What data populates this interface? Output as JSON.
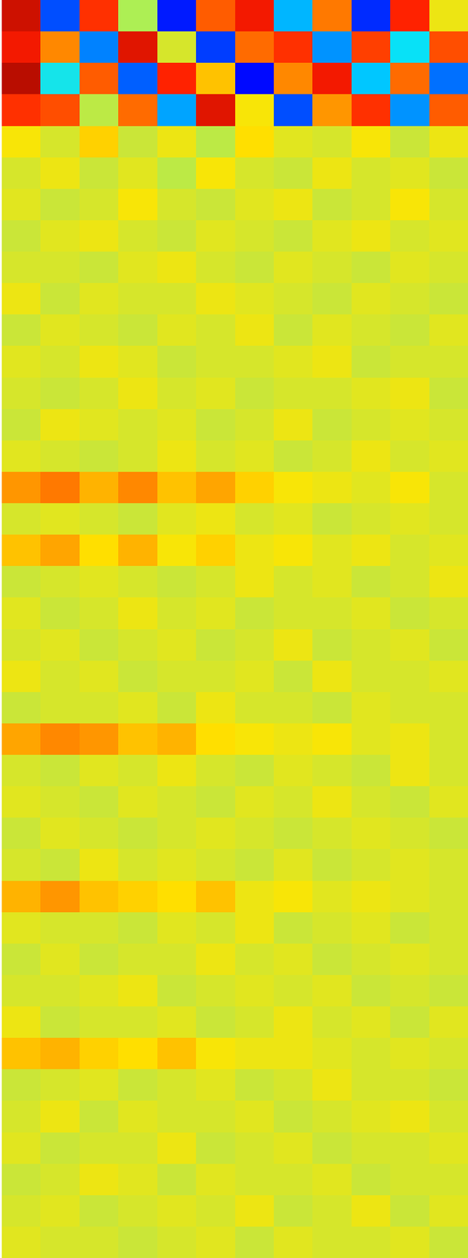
{
  "chart_data": {
    "type": "heatmap",
    "tick_labels": false,
    "zlim": [
      -3,
      3
    ],
    "z": [
      [
        2.6,
        -1.8,
        2.2,
        0.3,
        -2.1,
        1.9,
        2.4,
        -1.2,
        1.7,
        -2.0,
        2.3,
        0.8
      ],
      [
        2.4,
        1.6,
        -1.5,
        2.5,
        0.6,
        -1.9,
        1.8,
        2.2,
        -1.4,
        2.1,
        -0.9,
        2.0
      ],
      [
        2.7,
        -0.8,
        1.9,
        -1.7,
        2.3,
        1.2,
        -2.2,
        1.6,
        2.4,
        -1.1,
        1.8,
        -1.6
      ],
      [
        2.2,
        2.0,
        0.4,
        1.8,
        -1.3,
        2.5,
        0.9,
        -1.8,
        1.5,
        2.2,
        -1.4,
        1.9
      ],
      [
        0.9,
        0.6,
        1.1,
        0.5,
        0.8,
        0.4,
        1.0,
        0.7,
        0.6,
        0.9,
        0.5,
        0.8
      ],
      [
        0.6,
        0.8,
        0.5,
        0.7,
        0.4,
        0.9,
        0.6,
        0.5,
        0.8,
        0.6,
        0.7,
        0.5
      ],
      [
        0.7,
        0.5,
        0.6,
        0.9,
        0.6,
        0.5,
        0.7,
        0.8,
        0.5,
        0.6,
        0.9,
        0.6
      ],
      [
        0.5,
        0.7,
        0.8,
        0.6,
        0.5,
        0.7,
        0.6,
        0.5,
        0.7,
        0.8,
        0.6,
        0.7
      ],
      [
        0.6,
        0.6,
        0.5,
        0.7,
        0.8,
        0.6,
        0.5,
        0.7,
        0.6,
        0.5,
        0.7,
        0.6
      ],
      [
        0.8,
        0.5,
        0.7,
        0.6,
        0.6,
        0.8,
        0.7,
        0.6,
        0.5,
        0.7,
        0.6,
        0.5
      ],
      [
        0.5,
        0.7,
        0.6,
        0.5,
        0.7,
        0.6,
        0.8,
        0.5,
        0.7,
        0.6,
        0.5,
        0.7
      ],
      [
        0.7,
        0.6,
        0.8,
        0.7,
        0.5,
        0.6,
        0.6,
        0.7,
        0.8,
        0.5,
        0.6,
        0.6
      ],
      [
        0.6,
        0.5,
        0.6,
        0.8,
        0.6,
        0.7,
        0.5,
        0.6,
        0.6,
        0.7,
        0.8,
        0.5
      ],
      [
        0.5,
        0.8,
        0.7,
        0.6,
        0.7,
        0.5,
        0.6,
        0.8,
        0.5,
        0.6,
        0.7,
        0.6
      ],
      [
        0.7,
        0.6,
        0.5,
        0.6,
        0.8,
        0.6,
        0.7,
        0.5,
        0.6,
        0.8,
        0.6,
        0.7
      ],
      [
        1.5,
        1.7,
        1.3,
        1.6,
        1.2,
        1.4,
        1.1,
        0.9,
        0.8,
        0.7,
        0.9,
        0.6
      ],
      [
        0.6,
        0.7,
        0.6,
        0.5,
        0.7,
        0.8,
        0.6,
        0.7,
        0.5,
        0.6,
        0.7,
        0.6
      ],
      [
        1.2,
        1.4,
        1.0,
        1.3,
        0.9,
        1.1,
        0.8,
        0.9,
        0.7,
        0.8,
        0.6,
        0.7
      ],
      [
        0.5,
        0.6,
        0.7,
        0.6,
        0.5,
        0.6,
        0.8,
        0.6,
        0.7,
        0.5,
        0.6,
        0.8
      ],
      [
        0.7,
        0.5,
        0.6,
        0.8,
        0.6,
        0.7,
        0.5,
        0.6,
        0.6,
        0.7,
        0.5,
        0.6
      ],
      [
        0.6,
        0.7,
        0.5,
        0.6,
        0.7,
        0.5,
        0.6,
        0.8,
        0.5,
        0.6,
        0.7,
        0.5
      ],
      [
        0.8,
        0.6,
        0.7,
        0.5,
        0.6,
        0.6,
        0.7,
        0.5,
        0.8,
        0.6,
        0.6,
        0.7
      ],
      [
        0.5,
        0.6,
        0.6,
        0.7,
        0.5,
        0.8,
        0.6,
        0.6,
        0.5,
        0.7,
        0.6,
        0.6
      ],
      [
        1.4,
        1.6,
        1.5,
        1.2,
        1.3,
        1.0,
        0.9,
        0.8,
        0.9,
        0.7,
        0.8,
        0.6
      ],
      [
        0.6,
        0.5,
        0.7,
        0.6,
        0.8,
        0.6,
        0.5,
        0.7,
        0.6,
        0.5,
        0.8,
        0.6
      ],
      [
        0.7,
        0.6,
        0.5,
        0.7,
        0.6,
        0.5,
        0.7,
        0.6,
        0.8,
        0.6,
        0.5,
        0.7
      ],
      [
        0.5,
        0.7,
        0.6,
        0.5,
        0.6,
        0.7,
        0.6,
        0.5,
        0.6,
        0.7,
        0.6,
        0.5
      ],
      [
        0.6,
        0.5,
        0.8,
        0.6,
        0.7,
        0.6,
        0.5,
        0.7,
        0.5,
        0.6,
        0.7,
        0.6
      ],
      [
        1.3,
        1.5,
        1.2,
        1.1,
        1.0,
        1.2,
        0.8,
        0.9,
        0.7,
        0.8,
        0.7,
        0.6
      ],
      [
        0.7,
        0.6,
        0.6,
        0.5,
        0.7,
        0.6,
        0.8,
        0.5,
        0.6,
        0.7,
        0.5,
        0.6
      ],
      [
        0.5,
        0.7,
        0.5,
        0.6,
        0.6,
        0.8,
        0.6,
        0.7,
        0.5,
        0.6,
        0.7,
        0.6
      ],
      [
        0.6,
        0.6,
        0.7,
        0.8,
        0.5,
        0.6,
        0.7,
        0.6,
        0.7,
        0.5,
        0.6,
        0.5
      ],
      [
        0.8,
        0.5,
        0.6,
        0.6,
        0.7,
        0.5,
        0.6,
        0.8,
        0.6,
        0.7,
        0.5,
        0.7
      ],
      [
        1.2,
        1.3,
        1.1,
        1.0,
        1.2,
        0.9,
        0.8,
        0.8,
        0.7,
        0.6,
        0.7,
        0.6
      ],
      [
        0.5,
        0.6,
        0.7,
        0.5,
        0.6,
        0.7,
        0.5,
        0.6,
        0.8,
        0.6,
        0.6,
        0.5
      ],
      [
        0.6,
        0.8,
        0.5,
        0.7,
        0.6,
        0.6,
        0.7,
        0.5,
        0.6,
        0.7,
        0.8,
        0.6
      ],
      [
        0.7,
        0.5,
        0.6,
        0.6,
        0.8,
        0.5,
        0.6,
        0.7,
        0.5,
        0.6,
        0.6,
        0.7
      ],
      [
        0.5,
        0.6,
        0.8,
        0.7,
        0.5,
        0.7,
        0.6,
        0.6,
        0.7,
        0.5,
        0.6,
        0.6
      ],
      [
        0.6,
        0.7,
        0.5,
        0.6,
        0.7,
        0.6,
        0.8,
        0.5,
        0.6,
        0.8,
        0.5,
        0.7
      ],
      [
        0.7,
        0.6,
        0.6,
        0.5,
        0.6,
        0.7,
        0.5,
        0.7,
        0.6,
        0.6,
        0.7,
        0.5
      ]
    ]
  }
}
